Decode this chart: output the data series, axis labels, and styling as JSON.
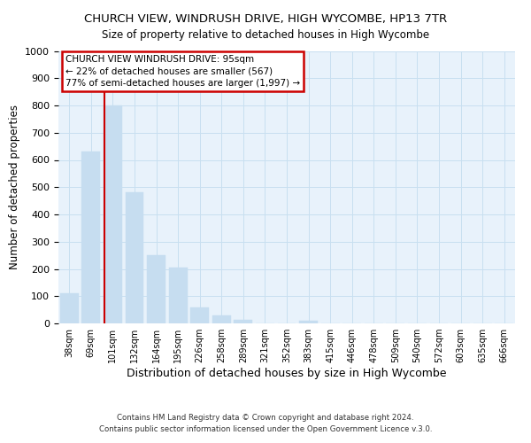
{
  "title": "CHURCH VIEW, WINDRUSH DRIVE, HIGH WYCOMBE, HP13 7TR",
  "subtitle": "Size of property relative to detached houses in High Wycombe",
  "xlabel": "Distribution of detached houses by size in High Wycombe",
  "ylabel": "Number of detached properties",
  "bar_labels": [
    "38sqm",
    "69sqm",
    "101sqm",
    "132sqm",
    "164sqm",
    "195sqm",
    "226sqm",
    "258sqm",
    "289sqm",
    "321sqm",
    "352sqm",
    "383sqm",
    "415sqm",
    "446sqm",
    "478sqm",
    "509sqm",
    "540sqm",
    "572sqm",
    "603sqm",
    "635sqm",
    "666sqm"
  ],
  "bar_values": [
    110,
    630,
    800,
    480,
    250,
    205,
    60,
    28,
    12,
    0,
    0,
    10,
    0,
    0,
    0,
    0,
    0,
    0,
    0,
    0,
    0
  ],
  "bar_color": "#c6ddf0",
  "bar_edge_color": "#c6ddf0",
  "vline_color": "#cc0000",
  "vline_position": 1.6,
  "ylim": [
    0,
    1000
  ],
  "yticks": [
    0,
    100,
    200,
    300,
    400,
    500,
    600,
    700,
    800,
    900,
    1000
  ],
  "annotation_title": "CHURCH VIEW WINDRUSH DRIVE: 95sqm",
  "annotation_line1": "← 22% of detached houses are smaller (567)",
  "annotation_line2": "77% of semi-detached houses are larger (1,997) →",
  "annotation_box_facecolor": "#ffffff",
  "annotation_box_edgecolor": "#cc0000",
  "footer1": "Contains HM Land Registry data © Crown copyright and database right 2024.",
  "footer2": "Contains public sector information licensed under the Open Government Licence v.3.0.",
  "grid_color": "#c8dff0",
  "background_color": "#ffffff",
  "plot_bg_color": "#e8f2fb"
}
